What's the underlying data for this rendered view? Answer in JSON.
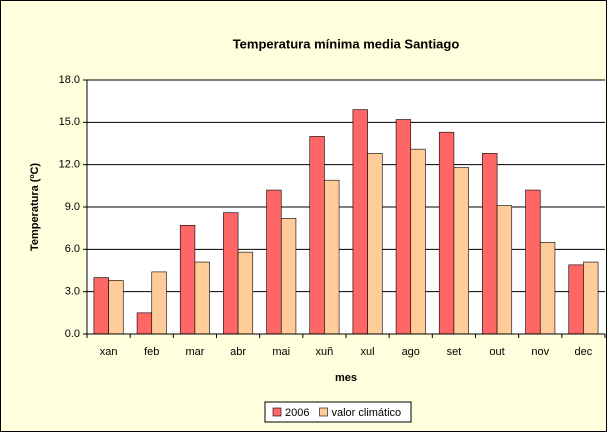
{
  "chart_data": {
    "type": "bar",
    "title": "Temperatura mínima media  Santiago",
    "x_label": "mes",
    "y_label": "Temperatura (ºC)",
    "categories": [
      "xan",
      "feb",
      "mar",
      "abr",
      "mai",
      "xuñ",
      "xul",
      "ago",
      "set",
      "out",
      "nov",
      "dec"
    ],
    "series": [
      {
        "name": "2006",
        "color": "#ff6666",
        "values": [
          4.0,
          1.5,
          7.7,
          8.6,
          10.2,
          14.0,
          15.9,
          15.2,
          14.3,
          12.8,
          10.2,
          4.9
        ]
      },
      {
        "name": "valor climático",
        "color": "#ffcc99",
        "values": [
          3.8,
          4.4,
          5.1,
          5.8,
          8.2,
          10.9,
          12.8,
          13.1,
          11.8,
          9.1,
          6.5,
          5.1
        ]
      }
    ],
    "ylim": [
      0,
      18
    ],
    "yticks": [
      {
        "value": 0,
        "label": "0.0"
      },
      {
        "value": 3,
        "label": "3.0"
      },
      {
        "value": 6,
        "label": "6.0"
      },
      {
        "value": 9,
        "label": "9.0"
      },
      {
        "value": 12,
        "label": "12.0"
      },
      {
        "value": 15,
        "label": "15.0"
      },
      {
        "value": 18,
        "label": "18.0"
      }
    ],
    "grid": true,
    "legend": "bottom"
  }
}
